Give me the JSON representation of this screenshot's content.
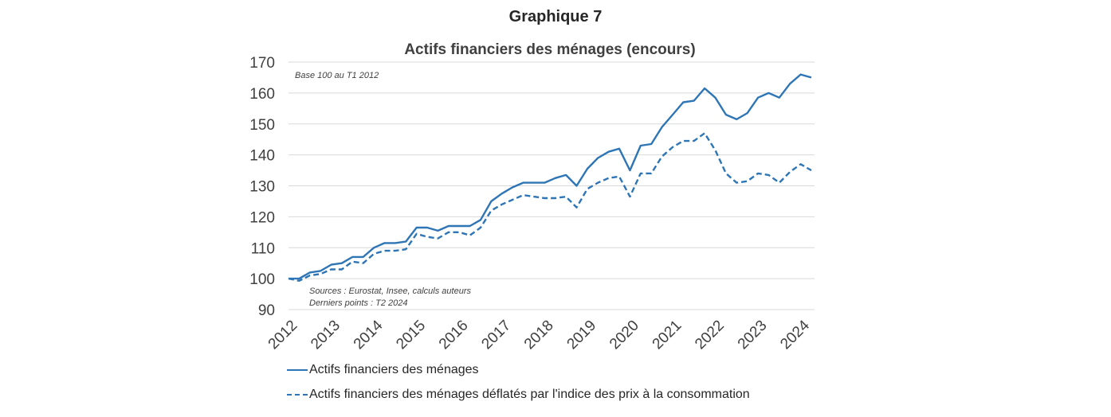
{
  "header": {
    "graph_label": "Graphique 7",
    "title": "Actifs financiers des ménages (encours)"
  },
  "notes": {
    "base": "Base 100 au T1 2012",
    "sources": "Sources : Eurostat, Insee, calculs auteurs",
    "last_points": "Derniers points : T2 2024"
  },
  "legend": {
    "series_1": "Actifs financiers des ménages",
    "series_2": "Actifs financiers des ménages déflatés par l'indice des prix à la consommation"
  },
  "colors": {
    "line": "#2e75b6",
    "grid": "#d9d9d9",
    "text": "#404040"
  },
  "chart_data": {
    "type": "line",
    "title": "Actifs financiers des ménages (encours)",
    "subtitle": "Base 100 au T1 2012",
    "xlabel": "",
    "ylabel": "",
    "ylim": [
      90,
      170
    ],
    "yticks": [
      90,
      100,
      110,
      120,
      130,
      140,
      150,
      160,
      170
    ],
    "xtick_labels": [
      "2012",
      "2013",
      "2014",
      "2015",
      "2016",
      "2017",
      "2018",
      "2019",
      "2020",
      "2021",
      "2022",
      "2023",
      "2024"
    ],
    "grid": true,
    "legend_position": "bottom",
    "x": [
      "2012T1",
      "2012T2",
      "2012T3",
      "2012T4",
      "2013T1",
      "2013T2",
      "2013T3",
      "2013T4",
      "2014T1",
      "2014T2",
      "2014T3",
      "2014T4",
      "2015T1",
      "2015T2",
      "2015T3",
      "2015T4",
      "2016T1",
      "2016T2",
      "2016T3",
      "2016T4",
      "2017T1",
      "2017T2",
      "2017T3",
      "2017T4",
      "2018T1",
      "2018T2",
      "2018T3",
      "2018T4",
      "2019T1",
      "2019T2",
      "2019T3",
      "2019T4",
      "2020T1",
      "2020T2",
      "2020T3",
      "2020T4",
      "2021T1",
      "2021T2",
      "2021T3",
      "2021T4",
      "2022T1",
      "2022T2",
      "2022T3",
      "2022T4",
      "2023T1",
      "2023T2",
      "2023T3",
      "2023T4",
      "2024T1",
      "2024T2"
    ],
    "series": [
      {
        "name": "Actifs financiers des ménages",
        "style": "solid",
        "values": [
          100,
          100,
          102,
          102.5,
          104.5,
          105,
          107,
          107,
          110,
          111.5,
          111.5,
          112,
          116.5,
          116.5,
          115.5,
          117,
          117,
          117,
          119,
          125,
          127.5,
          129.5,
          131,
          131,
          131,
          132.5,
          133.5,
          130,
          135.5,
          139,
          141,
          142,
          135,
          143,
          143.5,
          149,
          153,
          157,
          157.5,
          161.5,
          158.5,
          153,
          151.5,
          153.5,
          158.5,
          160,
          158.5,
          163,
          166,
          165
        ]
      },
      {
        "name": "Actifs financiers des ménages déflatés par l'indice des prix à la consommation",
        "style": "dashed",
        "values": [
          100,
          99.3,
          101,
          101.5,
          103,
          103,
          105.5,
          105,
          108,
          109,
          109,
          109.5,
          114.5,
          113.5,
          113,
          115,
          115,
          114,
          116.5,
          122,
          124,
          125.5,
          127,
          126.5,
          126,
          126,
          126.5,
          123,
          129,
          131,
          132.5,
          133,
          126.5,
          134,
          134,
          139.5,
          142.5,
          144.5,
          144.5,
          147,
          141.5,
          134,
          131,
          131.5,
          134,
          133.5,
          131,
          134.5,
          137,
          135
        ]
      }
    ],
    "source": "Sources : Eurostat, Insee, calculs auteurs",
    "note": "Derniers points : T2 2024"
  }
}
